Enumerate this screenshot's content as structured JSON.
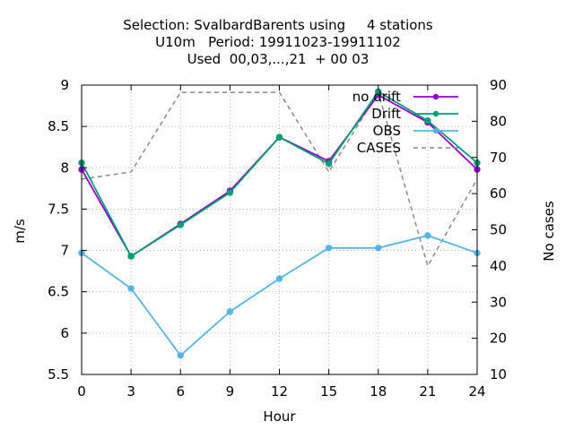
{
  "chart_data": {
    "type": "line",
    "title_lines": [
      "Selection: SvalbardBarents using     4 stations",
      "U10m   Period: 19911023-19911102",
      "Used  00,03,...,21  + 00 03"
    ],
    "xlabel": "Hour",
    "ylabel": "m/s",
    "y2label": "No cases",
    "x": [
      0,
      3,
      6,
      9,
      12,
      15,
      18,
      21,
      24
    ],
    "xticks": [
      "0",
      "3",
      "6",
      "9",
      "12",
      "15",
      "18",
      "21",
      "24"
    ],
    "xlim": [
      0,
      24
    ],
    "ylim": [
      5.5,
      9
    ],
    "yticks": [
      "5.5",
      "6",
      "6.5",
      "7",
      "7.5",
      "8",
      "8.5",
      "9"
    ],
    "y2lim": [
      10,
      90
    ],
    "y2ticks": [
      "10",
      "20",
      "30",
      "40",
      "50",
      "60",
      "70",
      "80",
      "90"
    ],
    "grid": true,
    "legend_position": "top-right",
    "series": [
      {
        "name": "no drift",
        "axis": "y",
        "color": "#9400d3",
        "style": "solid-marker",
        "values": [
          7.98,
          6.93,
          7.32,
          7.72,
          8.37,
          8.08,
          8.88,
          8.55,
          7.98
        ]
      },
      {
        "name": "Drift",
        "axis": "y",
        "color": "#009e73",
        "style": "solid-marker",
        "values": [
          8.06,
          6.93,
          7.31,
          7.7,
          8.37,
          8.05,
          8.92,
          8.57,
          8.06
        ]
      },
      {
        "name": "OBS",
        "axis": "y",
        "color": "#56b4e9",
        "style": "solid-marker",
        "values": [
          6.97,
          6.54,
          5.73,
          6.26,
          6.66,
          7.03,
          7.03,
          7.18,
          6.97
        ]
      },
      {
        "name": "CASES",
        "axis": "y2",
        "color": "#888888",
        "style": "dashed",
        "values": [
          64,
          66,
          88,
          88,
          88,
          66,
          88,
          40,
          64
        ]
      }
    ]
  }
}
